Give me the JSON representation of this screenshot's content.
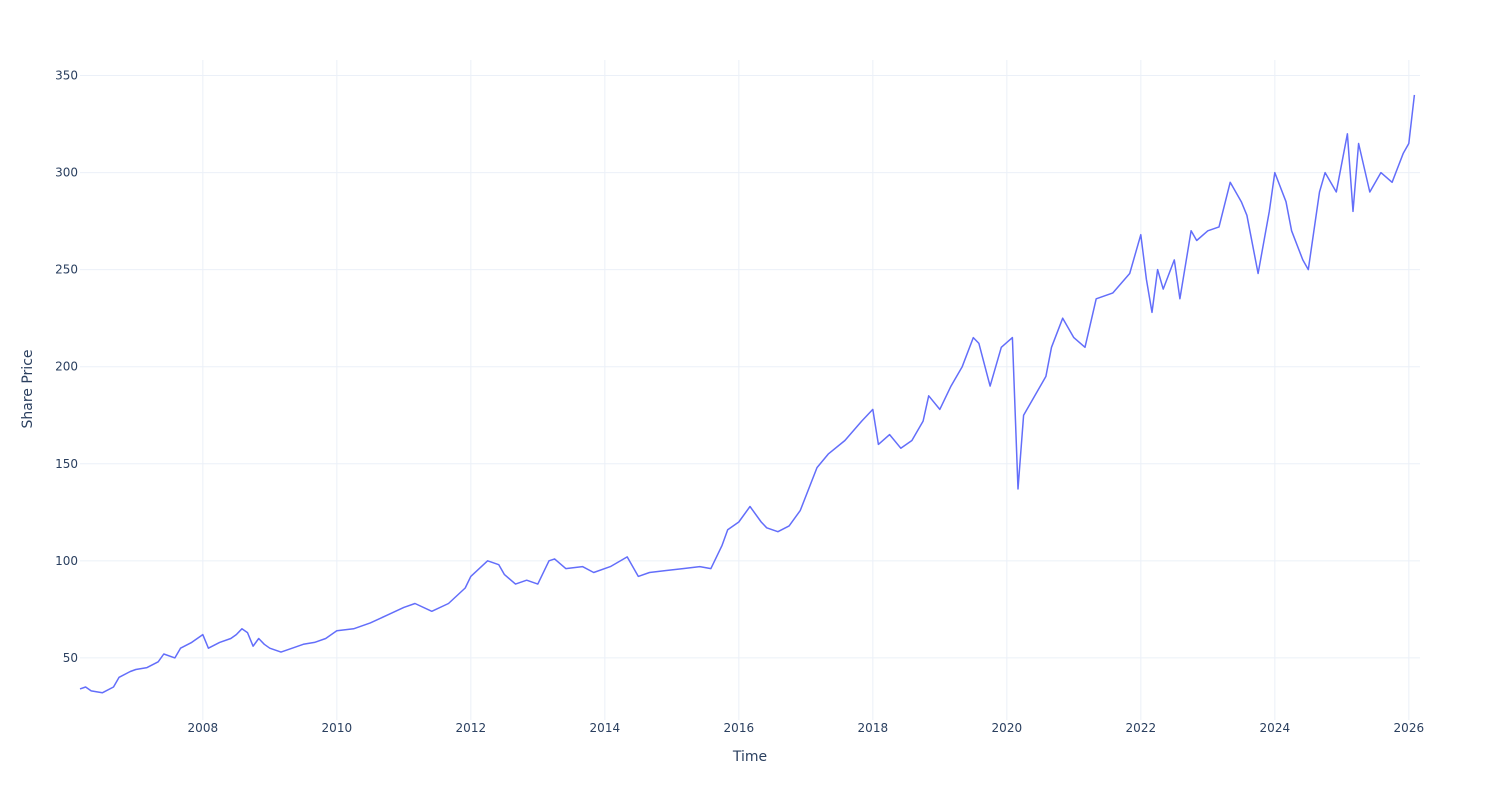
{
  "chart_data": {
    "type": "line",
    "xlabel": "Time",
    "ylabel": "Share Price",
    "xlim": [
      "2006-03-01",
      "2026-03-01"
    ],
    "ylim": [
      18,
      358
    ],
    "x_ticks": [
      "2008",
      "2010",
      "2012",
      "2014",
      "2016",
      "2018",
      "2020",
      "2022",
      "2024",
      "2026"
    ],
    "y_ticks": [
      50,
      100,
      150,
      200,
      250,
      300,
      350
    ],
    "grid": true,
    "legend": "none",
    "line_color": "#636efa",
    "series": [
      {
        "x": [
          "2006-03",
          "2006-04",
          "2006-05",
          "2006-07",
          "2006-09",
          "2006-10",
          "2006-12",
          "2007-01",
          "2007-03",
          "2007-05",
          "2007-06",
          "2007-08",
          "2007-09",
          "2007-11",
          "2008-01",
          "2008-02",
          "2008-04",
          "2008-06",
          "2008-07",
          "2008-08",
          "2008-09",
          "2008-10",
          "2008-11",
          "2008-12",
          "2009-01",
          "2009-03",
          "2009-05",
          "2009-07",
          "2009-09",
          "2009-11",
          "2010-01",
          "2010-04",
          "2010-07",
          "2010-10",
          "2011-01",
          "2011-03",
          "2011-06",
          "2011-09",
          "2011-12",
          "2012-01",
          "2012-04",
          "2012-06",
          "2012-07",
          "2012-09",
          "2012-11",
          "2013-01",
          "2013-03",
          "2013-04",
          "2013-06",
          "2013-09",
          "2013-11",
          "2014-02",
          "2014-05",
          "2014-07",
          "2014-09",
          "2014-12",
          "2015-03",
          "2015-06",
          "2015-08",
          "2015-10",
          "2015-11",
          "2016-01",
          "2016-03",
          "2016-05",
          "2016-06",
          "2016-08",
          "2016-10",
          "2016-12",
          "2017-03",
          "2017-05",
          "2017-08",
          "2017-11",
          "2018-01",
          "2018-02",
          "2018-04",
          "2018-06",
          "2018-08",
          "2018-10",
          "2018-11",
          "2019-01",
          "2019-03",
          "2019-05",
          "2019-07",
          "2019-08",
          "2019-10",
          "2019-12",
          "2020-02",
          "2020-03",
          "2020-04",
          "2020-06",
          "2020-08",
          "2020-09",
          "2020-11",
          "2021-01",
          "2021-03",
          "2021-05",
          "2021-08",
          "2021-11",
          "2022-01",
          "2022-02",
          "2022-03",
          "2022-04",
          "2022-05",
          "2022-07",
          "2022-08",
          "2022-10",
          "2022-11",
          "2023-01",
          "2023-03",
          "2023-05",
          "2023-07",
          "2023-08",
          "2023-10",
          "2023-12",
          "2024-01",
          "2024-03",
          "2024-04",
          "2024-06",
          "2024-07",
          "2024-09",
          "2024-10",
          "2024-12",
          "2025-02",
          "2025-03",
          "2025-04",
          "2025-06",
          "2025-08",
          "2025-10",
          "2025-12",
          "2026-01",
          "2026-02"
        ],
        "y": [
          34,
          35,
          33,
          32,
          35,
          40,
          43,
          44,
          45,
          48,
          52,
          50,
          55,
          58,
          62,
          55,
          58,
          60,
          62,
          65,
          63,
          56,
          60,
          57,
          55,
          53,
          55,
          57,
          58,
          60,
          64,
          65,
          68,
          72,
          76,
          78,
          74,
          78,
          86,
          92,
          100,
          98,
          93,
          88,
          90,
          88,
          100,
          101,
          96,
          97,
          94,
          97,
          102,
          92,
          94,
          95,
          96,
          97,
          96,
          108,
          116,
          120,
          128,
          120,
          117,
          115,
          118,
          126,
          148,
          155,
          162,
          172,
          178,
          160,
          165,
          158,
          162,
          172,
          185,
          178,
          190,
          200,
          215,
          212,
          190,
          210,
          215,
          137,
          175,
          185,
          195,
          210,
          225,
          215,
          210,
          235,
          238,
          248,
          268,
          245,
          228,
          250,
          240,
          255,
          235,
          270,
          265,
          270,
          272,
          295,
          285,
          278,
          248,
          280,
          300,
          285,
          270,
          255,
          250,
          290,
          300,
          290,
          320,
          280,
          315,
          290,
          300,
          295,
          310,
          315,
          340
        ]
      }
    ]
  }
}
